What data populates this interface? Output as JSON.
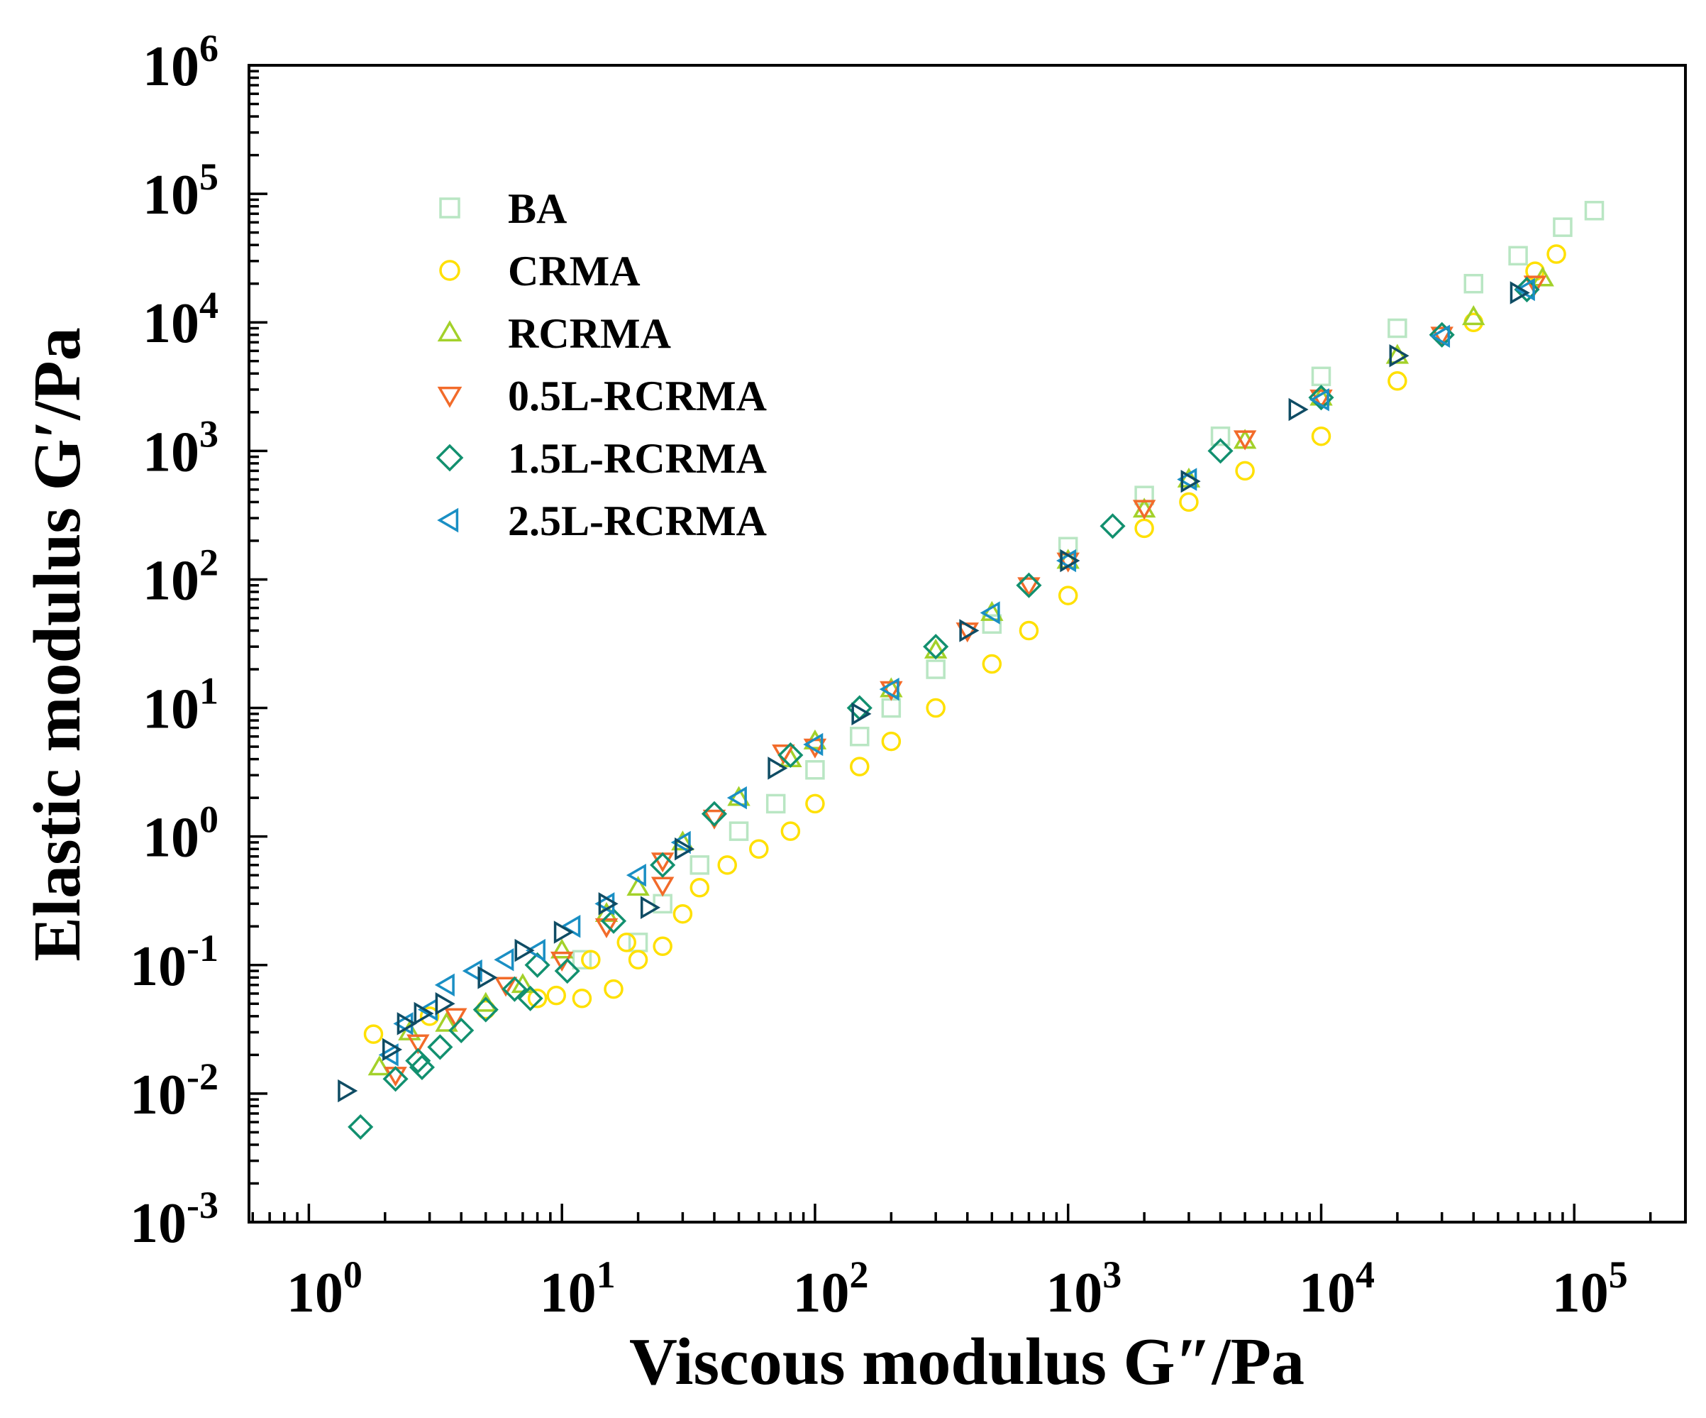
{
  "chart_data": {
    "type": "scatter",
    "title": "",
    "xlabel": "Viscous modulus G″/Pa",
    "ylabel": "Elastic modulus G′/Pa",
    "xscale": "log",
    "yscale": "log",
    "xlim": [
      0.58,
      275000
    ],
    "ylim": [
      0.001,
      1000000
    ],
    "xticks": [
      {
        "base": "10",
        "exp": "0",
        "value": 1
      },
      {
        "base": "10",
        "exp": "1",
        "value": 10
      },
      {
        "base": "10",
        "exp": "2",
        "value": 100
      },
      {
        "base": "10",
        "exp": "3",
        "value": 1000
      },
      {
        "base": "10",
        "exp": "4",
        "value": 10000
      },
      {
        "base": "10",
        "exp": "5",
        "value": 100000
      }
    ],
    "yticks": [
      {
        "base": "10",
        "exp": "-3",
        "value": 0.001
      },
      {
        "base": "10",
        "exp": "-2",
        "value": 0.01
      },
      {
        "base": "10",
        "exp": "-1",
        "value": 0.1
      },
      {
        "base": "10",
        "exp": "0",
        "value": 1
      },
      {
        "base": "10",
        "exp": "1",
        "value": 10
      },
      {
        "base": "10",
        "exp": "2",
        "value": 100
      },
      {
        "base": "10",
        "exp": "3",
        "value": 1000
      },
      {
        "base": "10",
        "exp": "4",
        "value": 10000
      },
      {
        "base": "10",
        "exp": "5",
        "value": 100000
      },
      {
        "base": "10",
        "exp": "6",
        "value": 1000000
      }
    ],
    "grid": false,
    "legend_position": "top-left",
    "series": [
      {
        "name": "BA",
        "marker": "square",
        "color": "#b9e6c3",
        "in_legend": true,
        "points": [
          [
            12,
            0.11
          ],
          [
            20,
            0.15
          ],
          [
            25,
            0.3
          ],
          [
            35,
            0.6
          ],
          [
            50,
            1.1
          ],
          [
            70,
            1.8
          ],
          [
            100,
            3.3
          ],
          [
            150,
            6
          ],
          [
            200,
            10
          ],
          [
            300,
            20
          ],
          [
            500,
            45
          ],
          [
            1000,
            180
          ],
          [
            2000,
            450
          ],
          [
            4000,
            1300
          ],
          [
            10000,
            3800
          ],
          [
            20000,
            9000
          ],
          [
            40000,
            20000
          ],
          [
            60000,
            33000
          ],
          [
            90000,
            55000
          ],
          [
            120000,
            74000
          ]
        ]
      },
      {
        "name": "CRMA",
        "marker": "circle",
        "color": "#ffe000",
        "in_legend": true,
        "points": [
          [
            1.8,
            0.029
          ],
          [
            3,
            0.04
          ],
          [
            5,
            0.045
          ],
          [
            8,
            0.055
          ],
          [
            9.5,
            0.058
          ],
          [
            12,
            0.055
          ],
          [
            13,
            0.11
          ],
          [
            16,
            0.065
          ],
          [
            18,
            0.15
          ],
          [
            20,
            0.11
          ],
          [
            25,
            0.14
          ],
          [
            30,
            0.25
          ],
          [
            35,
            0.4
          ],
          [
            45,
            0.6
          ],
          [
            60,
            0.8
          ],
          [
            80,
            1.1
          ],
          [
            100,
            1.8
          ],
          [
            150,
            3.5
          ],
          [
            200,
            5.5
          ],
          [
            300,
            10
          ],
          [
            500,
            22
          ],
          [
            700,
            40
          ],
          [
            1000,
            75
          ],
          [
            2000,
            250
          ],
          [
            3000,
            400
          ],
          [
            5000,
            700
          ],
          [
            10000,
            1300
          ],
          [
            20000,
            3500
          ],
          [
            40000,
            10000
          ],
          [
            70000,
            25000
          ],
          [
            85000,
            34000
          ]
        ]
      },
      {
        "name": "RCRMA",
        "marker": "triangle-up",
        "color": "#a3d12a",
        "in_legend": true,
        "points": [
          [
            1.9,
            0.016
          ],
          [
            2.5,
            0.03
          ],
          [
            3.5,
            0.035
          ],
          [
            5,
            0.05
          ],
          [
            7,
            0.07
          ],
          [
            10,
            0.13
          ],
          [
            15,
            0.25
          ],
          [
            20,
            0.4
          ],
          [
            30,
            0.9
          ],
          [
            50,
            2
          ],
          [
            80,
            4
          ],
          [
            100,
            5.5
          ],
          [
            200,
            14
          ],
          [
            300,
            28
          ],
          [
            500,
            55
          ],
          [
            1000,
            140
          ],
          [
            2000,
            350
          ],
          [
            3000,
            600
          ],
          [
            5000,
            1200
          ],
          [
            10000,
            2600
          ],
          [
            20000,
            5500
          ],
          [
            40000,
            11000
          ],
          [
            75000,
            22000
          ]
        ]
      },
      {
        "name": "0.5L-RCRMA",
        "marker": "triangle-down",
        "color": "#f26b2a",
        "in_legend": true,
        "points": [
          [
            2.2,
            0.014
          ],
          [
            2.7,
            0.025
          ],
          [
            3.8,
            0.04
          ],
          [
            6,
            0.07
          ],
          [
            10,
            0.11
          ],
          [
            15,
            0.2
          ],
          [
            25,
            0.65
          ],
          [
            25,
            0.42
          ],
          [
            40,
            1.4
          ],
          [
            75,
            4.5
          ],
          [
            100,
            5
          ],
          [
            200,
            14
          ],
          [
            400,
            40
          ],
          [
            700,
            90
          ],
          [
            1000,
            140
          ],
          [
            2000,
            360
          ],
          [
            5000,
            1250
          ],
          [
            10000,
            2600
          ],
          [
            30000,
            8000
          ],
          [
            70000,
            20000
          ]
        ]
      },
      {
        "name": "1.5L-RCRMA",
        "marker": "diamond",
        "color": "#12906f",
        "in_legend": true,
        "points": [
          [
            1.6,
            0.0055
          ],
          [
            2.2,
            0.013
          ],
          [
            2.7,
            0.018
          ],
          [
            2.8,
            0.016
          ],
          [
            3.3,
            0.023
          ],
          [
            4,
            0.031
          ],
          [
            5,
            0.045
          ],
          [
            6.5,
            0.065
          ],
          [
            7.5,
            0.055
          ],
          [
            8,
            0.1
          ],
          [
            10.5,
            0.09
          ],
          [
            16,
            0.22
          ],
          [
            25,
            0.6
          ],
          [
            40,
            1.5
          ],
          [
            80,
            4.3
          ],
          [
            150,
            10
          ],
          [
            300,
            30
          ],
          [
            700,
            90
          ],
          [
            1500,
            260
          ],
          [
            4000,
            1000
          ],
          [
            10000,
            2600
          ],
          [
            30000,
            8000
          ],
          [
            65000,
            18000
          ]
        ]
      },
      {
        "name": "2.5L-RCRMA",
        "marker": "triangle-left",
        "color": "#1a8fc4",
        "in_legend": true,
        "points": [
          [
            2.1,
            0.02
          ],
          [
            2.4,
            0.035
          ],
          [
            3,
            0.045
          ],
          [
            3.5,
            0.07
          ],
          [
            4.5,
            0.09
          ],
          [
            6,
            0.11
          ],
          [
            8,
            0.13
          ],
          [
            11,
            0.2
          ],
          [
            15,
            0.3
          ],
          [
            20,
            0.5
          ],
          [
            30,
            0.9
          ],
          [
            50,
            2
          ],
          [
            100,
            5.2
          ],
          [
            200,
            14
          ],
          [
            500,
            55
          ],
          [
            1000,
            140
          ],
          [
            3000,
            600
          ],
          [
            10000,
            2500
          ],
          [
            30000,
            7800
          ],
          [
            65000,
            18000
          ]
        ]
      },
      {
        "marker": "triangle-right",
        "color": "#0f4c64",
        "in_legend": false,
        "points": [
          [
            1.4,
            0.0105
          ],
          [
            2.1,
            0.022
          ],
          [
            2.4,
            0.035
          ],
          [
            2.8,
            0.042
          ],
          [
            3.4,
            0.05
          ],
          [
            5,
            0.08
          ],
          [
            7,
            0.13
          ],
          [
            10,
            0.18
          ],
          [
            15,
            0.3
          ],
          [
            22,
            0.28
          ],
          [
            30,
            0.8
          ],
          [
            70,
            3.4
          ],
          [
            150,
            9
          ],
          [
            400,
            40
          ],
          [
            1000,
            140
          ],
          [
            3000,
            580
          ],
          [
            8000,
            2100
          ],
          [
            20000,
            5500
          ],
          [
            60000,
            17000
          ]
        ]
      }
    ]
  }
}
